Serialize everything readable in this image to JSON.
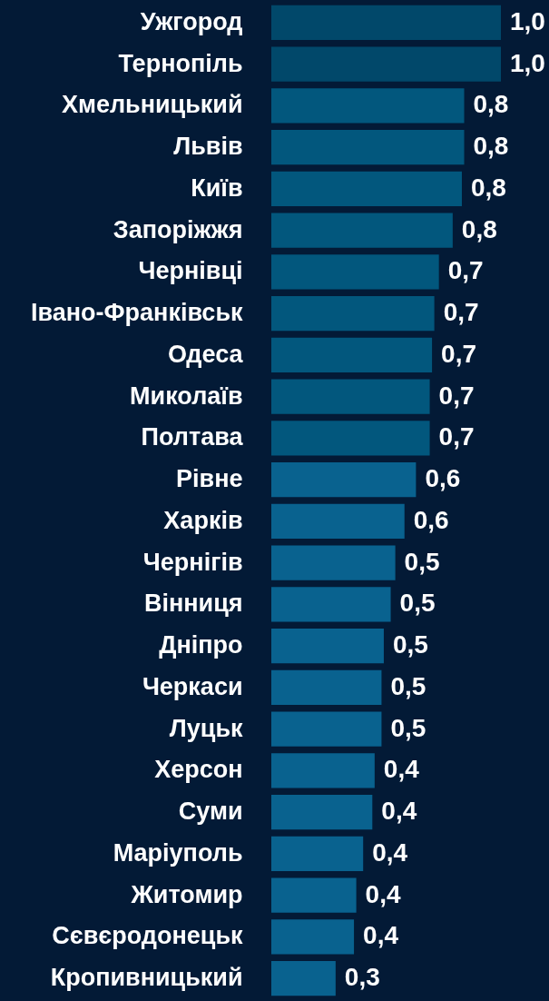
{
  "chart_data": {
    "type": "bar",
    "orientation": "horizontal",
    "categories": [
      "Ужгород",
      "Тернопіль",
      "Хмельницький",
      "Львів",
      "Київ",
      "Запоріжжя",
      "Чернівці",
      "Івано-Франківськ",
      "Одеса",
      "Миколаїв",
      "Полтава",
      "Рівне",
      "Харків",
      "Чернігів",
      "Вінниця",
      "Дніпро",
      "Черкаси",
      "Луцьк",
      "Херсон",
      "Суми",
      "Маріуполь",
      "Житомир",
      "Сєвєродонецьк",
      "Кропивницький"
    ],
    "values": [
      1.0,
      1.0,
      0.84,
      0.84,
      0.83,
      0.79,
      0.73,
      0.71,
      0.7,
      0.69,
      0.69,
      0.63,
      0.58,
      0.54,
      0.52,
      0.49,
      0.48,
      0.48,
      0.45,
      0.44,
      0.4,
      0.37,
      0.36,
      0.28
    ],
    "value_labels": [
      "1,0",
      "1,0",
      "0,8",
      "0,8",
      "0,8",
      "0,8",
      "0,7",
      "0,7",
      "0,7",
      "0,7",
      "0,7",
      "0,6",
      "0,6",
      "0,5",
      "0,5",
      "0,5",
      "0,5",
      "0,5",
      "0,4",
      "0,4",
      "0,4",
      "0,4",
      "0,4",
      "0,3"
    ],
    "colors": [
      "#01486a",
      "#01486a",
      "#02577d",
      "#02577d",
      "#02577d",
      "#02577d",
      "#02577d",
      "#02577d",
      "#02577d",
      "#02577d",
      "#02577d",
      "#09628f",
      "#09628f",
      "#09628f",
      "#09628f",
      "#09628f",
      "#09628f",
      "#09628f",
      "#09628f",
      "#09628f",
      "#09628f",
      "#09628f",
      "#09628f",
      "#09628f"
    ]
  }
}
